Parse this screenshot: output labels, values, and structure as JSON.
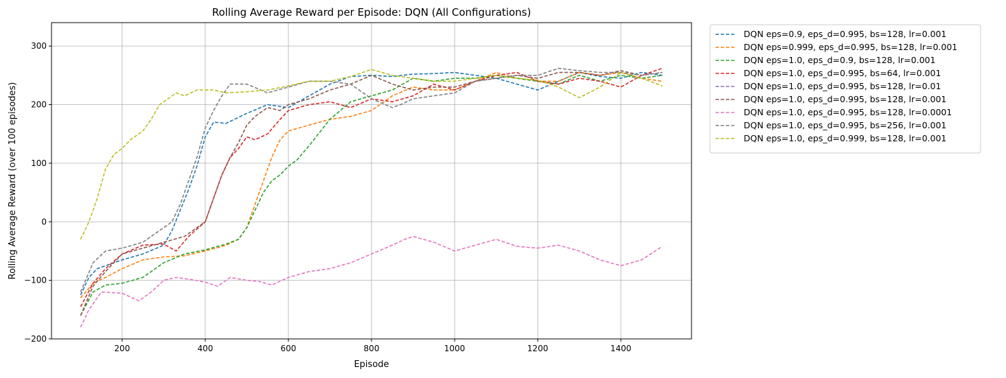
{
  "chart_data": {
    "type": "line",
    "title": "Rolling Average Reward per Episode: DQN (All Configurations)",
    "xlabel": "Episode",
    "ylabel": "Rolling Average Reward (over 100 episodes)",
    "xlim": [
      30,
      1570
    ],
    "ylim": [
      -200,
      340
    ],
    "xticks": [
      200,
      400,
      600,
      800,
      1000,
      1200,
      1400
    ],
    "yticks": [
      -200,
      -100,
      0,
      100,
      200,
      300
    ],
    "grid": true,
    "line_style": "dashed",
    "legend_position": "outside-right-top",
    "series": [
      {
        "name": "DQN eps=0.9, eps_d=0.995, bs=128, lr=0.001",
        "color": "#1f77b4",
        "x": [
          100,
          120,
          140,
          160,
          200,
          250,
          300,
          320,
          340,
          360,
          380,
          400,
          420,
          450,
          500,
          550,
          600,
          650,
          700,
          750,
          800,
          850,
          900,
          950,
          1000,
          1050,
          1100,
          1150,
          1200,
          1250,
          1300,
          1350,
          1400,
          1450,
          1500
        ],
        "y": [
          -125,
          -95,
          -80,
          -75,
          -65,
          -55,
          -40,
          -15,
          20,
          55,
          95,
          145,
          170,
          168,
          185,
          200,
          195,
          215,
          235,
          248,
          250,
          248,
          252,
          253,
          255,
          250,
          245,
          235,
          225,
          240,
          255,
          248,
          245,
          255,
          250
        ]
      },
      {
        "name": "DQN eps=0.999, eps_d=0.995, bs=128, lr=0.001",
        "color": "#ff7f0e",
        "x": [
          100,
          130,
          160,
          200,
          250,
          300,
          350,
          400,
          450,
          480,
          500,
          520,
          540,
          560,
          580,
          600,
          650,
          700,
          750,
          800,
          850,
          900,
          950,
          1000,
          1050,
          1100,
          1150,
          1200,
          1250,
          1300,
          1350,
          1400,
          1450,
          1500
        ],
        "y": [
          -130,
          -105,
          -95,
          -80,
          -65,
          -60,
          -58,
          -50,
          -40,
          -30,
          -10,
          30,
          70,
          110,
          140,
          155,
          165,
          175,
          180,
          190,
          215,
          230,
          225,
          225,
          240,
          255,
          245,
          240,
          240,
          255,
          250,
          255,
          245,
          240
        ]
      },
      {
        "name": "DQN eps=1.0, eps_d=0.9, bs=128, lr=0.001",
        "color": "#2ca02c",
        "x": [
          100,
          130,
          160,
          200,
          250,
          300,
          350,
          400,
          450,
          480,
          500,
          520,
          540,
          560,
          580,
          600,
          620,
          650,
          700,
          750,
          800,
          850,
          900,
          950,
          1000,
          1050,
          1100,
          1150,
          1200,
          1250,
          1300,
          1350,
          1400,
          1450,
          1500
        ],
        "y": [
          -160,
          -120,
          -108,
          -105,
          -95,
          -70,
          -55,
          -48,
          -38,
          -30,
          -10,
          20,
          50,
          70,
          80,
          95,
          105,
          130,
          175,
          205,
          215,
          225,
          245,
          240,
          245,
          245,
          250,
          245,
          240,
          235,
          250,
          240,
          250,
          245,
          250
        ]
      },
      {
        "name": "DQN eps=1.0, eps_d=0.995, bs=64, lr=0.001",
        "color": "#d62728",
        "x": [
          100,
          130,
          160,
          200,
          250,
          300,
          330,
          360,
          400,
          420,
          440,
          460,
          480,
          500,
          520,
          550,
          580,
          600,
          650,
          700,
          750,
          800,
          850,
          900,
          950,
          1000,
          1050,
          1100,
          1150,
          1200,
          1250,
          1300,
          1350,
          1400,
          1450,
          1500
        ],
        "y": [
          -145,
          -105,
          -80,
          -55,
          -40,
          -38,
          -50,
          -25,
          0,
          40,
          80,
          110,
          125,
          145,
          140,
          150,
          175,
          190,
          200,
          205,
          195,
          210,
          205,
          215,
          235,
          225,
          240,
          250,
          255,
          240,
          235,
          245,
          240,
          230,
          250,
          262
        ]
      },
      {
        "name": "DQN eps=1.0, eps_d=0.995, bs=128, lr=0.01",
        "color": "#9467bd",
        "x": [],
        "y": []
      },
      {
        "name": "DQN eps=1.0, eps_d=0.995, bs=128, lr=0.001",
        "color": "#8c564b",
        "x": [
          100,
          130,
          160,
          200,
          250,
          300,
          350,
          400,
          420,
          440,
          460,
          480,
          500,
          520,
          550,
          580,
          600,
          650,
          700,
          750,
          800,
          850,
          900,
          950,
          1000,
          1050,
          1100,
          1150,
          1200,
          1250,
          1300,
          1350,
          1400,
          1450,
          1500
        ],
        "y": [
          -160,
          -110,
          -85,
          -55,
          -45,
          -35,
          -25,
          0,
          40,
          80,
          110,
          135,
          165,
          180,
          195,
          190,
          200,
          210,
          225,
          235,
          250,
          235,
          225,
          230,
          230,
          240,
          245,
          250,
          245,
          255,
          255,
          250,
          258,
          250,
          255
        ]
      },
      {
        "name": "DQN eps=1.0, eps_d=0.995, bs=128, lr=0.0001",
        "color": "#e377c2",
        "x": [
          100,
          120,
          150,
          200,
          240,
          270,
          300,
          330,
          360,
          400,
          430,
          460,
          500,
          530,
          560,
          600,
          650,
          700,
          750,
          800,
          850,
          880,
          900,
          950,
          1000,
          1050,
          1100,
          1150,
          1200,
          1250,
          1300,
          1350,
          1400,
          1450,
          1500
        ],
        "y": [
          -180,
          -150,
          -120,
          -122,
          -135,
          -120,
          -100,
          -95,
          -98,
          -103,
          -110,
          -95,
          -100,
          -102,
          -108,
          -95,
          -85,
          -80,
          -70,
          -55,
          -40,
          -30,
          -25,
          -35,
          -50,
          -40,
          -30,
          -42,
          -45,
          -40,
          -50,
          -65,
          -75,
          -65,
          -42
        ]
      },
      {
        "name": "DQN eps=1.0, eps_d=0.995, bs=256, lr=0.001",
        "color": "#7f7f7f",
        "x": [
          100,
          130,
          160,
          200,
          250,
          300,
          320,
          340,
          360,
          380,
          400,
          420,
          440,
          460,
          500,
          550,
          600,
          650,
          700,
          750,
          800,
          850,
          870,
          900,
          950,
          1000,
          1050,
          1100,
          1150,
          1200,
          1250,
          1300,
          1350,
          1400,
          1450,
          1500
        ],
        "y": [
          -120,
          -70,
          -50,
          -45,
          -35,
          -10,
          0,
          30,
          70,
          110,
          160,
          190,
          215,
          235,
          235,
          220,
          230,
          240,
          240,
          235,
          210,
          195,
          200,
          210,
          215,
          220,
          240,
          245,
          250,
          250,
          262,
          258,
          255,
          255,
          250,
          255
        ]
      },
      {
        "name": "DQN eps=1.0, eps_d=0.999, bs=128, lr=0.001",
        "color": "#bcbd22",
        "x": [
          100,
          120,
          140,
          160,
          180,
          200,
          220,
          250,
          270,
          290,
          310,
          330,
          350,
          380,
          420,
          450,
          500,
          550,
          600,
          650,
          700,
          750,
          800,
          850,
          900,
          950,
          1000,
          1050,
          1100,
          1150,
          1200,
          1250,
          1300,
          1350,
          1400,
          1450,
          1500
        ],
        "y": [
          -30,
          0,
          40,
          90,
          115,
          125,
          140,
          155,
          175,
          200,
          210,
          220,
          215,
          225,
          225,
          220,
          222,
          225,
          232,
          240,
          240,
          248,
          260,
          250,
          245,
          240,
          240,
          245,
          250,
          245,
          242,
          230,
          212,
          230,
          255,
          245,
          232
        ]
      }
    ]
  }
}
